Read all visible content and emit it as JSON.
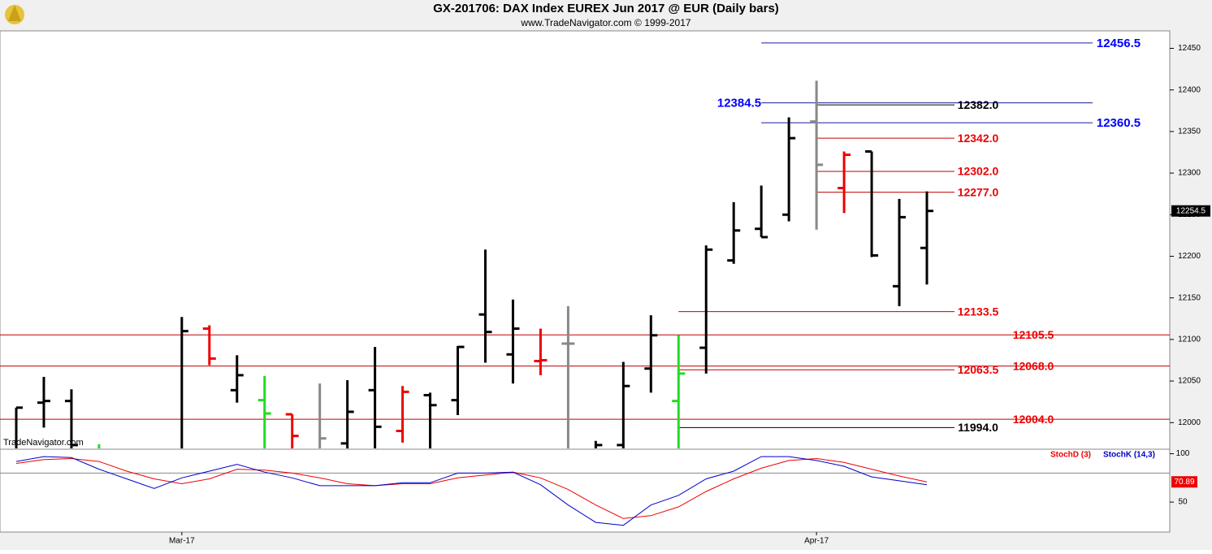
{
  "title": "GX-201706:  DAX Index EUREX Jun 2017 @ EUR  (Daily bars)",
  "subtitle": "www.TradeNavigator.com © 1999-2017",
  "watermark": "TradeNavigator.com",
  "chart_data": [
    {
      "type": "ohlc",
      "ylim": [
        11969,
        12471
      ],
      "yticks": [
        12000,
        12050,
        12100,
        12150,
        12200,
        12250,
        12300,
        12350,
        12400,
        12450
      ],
      "xticks": [
        {
          "value": 6,
          "label": "Mar-17"
        },
        {
          "value": 29,
          "label": "Apr-17"
        }
      ],
      "bars": [
        {
          "open": null,
          "high": 12018,
          "low": null,
          "close": 12018,
          "color": "#000000"
        },
        {
          "open": 12024,
          "high": 12055,
          "low": 11994,
          "close": 12026,
          "color": "#000000"
        },
        {
          "open": 12026,
          "high": 12040,
          "low": null,
          "close": 11973,
          "color": "#000000"
        },
        {
          "open": null,
          "high": 11974,
          "low": null,
          "close": null,
          "color": "#22dd22"
        },
        null,
        null,
        {
          "open": null,
          "high": 12127,
          "low": null,
          "close": 12110,
          "color": "#000000"
        },
        {
          "open": 12113,
          "high": 12117,
          "low": 12069,
          "close": 12077,
          "color": "#ee0000"
        },
        {
          "open": 12039,
          "high": 12081,
          "low": 12024,
          "close": 12057,
          "color": "#000000"
        },
        {
          "open": 12027,
          "high": 12056,
          "low": null,
          "close": 12011,
          "color": "#22dd22"
        },
        {
          "open": 12010,
          "high": 12010,
          "low": null,
          "close": 11984,
          "color": "#ee0000"
        },
        {
          "open": null,
          "high": 12047,
          "low": null,
          "close": 11981,
          "color": "#888888"
        },
        {
          "open": 11975,
          "high": 12051,
          "low": null,
          "close": 12013,
          "color": "#000000"
        },
        {
          "open": 12039,
          "high": 12091,
          "low": null,
          "close": 11995,
          "color": "#000000"
        },
        {
          "open": 11990,
          "high": 12044,
          "low": 11976,
          "close": 12037,
          "color": "#ee0000"
        },
        {
          "open": 12033,
          "high": 12036,
          "low": null,
          "close": 12021,
          "color": "#000000"
        },
        {
          "open": 12027,
          "high": 12092,
          "low": 12009,
          "close": 12091,
          "color": "#000000"
        },
        {
          "open": 12130,
          "high": 12208,
          "low": 12072,
          "close": 12109,
          "color": "#000000"
        },
        {
          "open": 12082,
          "high": 12148,
          "low": 12047,
          "close": 12113,
          "color": "#000000"
        },
        {
          "open": 12074,
          "high": 12113,
          "low": 12057,
          "close": 12075,
          "color": "#ee0000"
        },
        {
          "open": 12095,
          "high": 12140,
          "low": null,
          "close": 12095,
          "color": "#888888"
        },
        {
          "open": null,
          "high": 11978,
          "low": null,
          "close": 11973,
          "color": "#000000"
        },
        {
          "open": 11973,
          "high": 12073,
          "low": null,
          "close": 12044,
          "color": "#000000"
        },
        {
          "open": 12065,
          "high": 12129,
          "low": 12036,
          "close": 12105,
          "color": "#000000"
        },
        {
          "open": 12026,
          "high": 12105,
          "low": null,
          "close": 12059,
          "color": "#22dd22"
        },
        {
          "open": 12090,
          "high": 12213,
          "low": 12059,
          "close": 12208,
          "color": "#000000"
        },
        {
          "open": 12195,
          "high": 12265,
          "low": 12191,
          "close": 12231,
          "color": "#000000"
        },
        {
          "open": 12233,
          "high": 12285,
          "low": 12223,
          "close": 12223,
          "color": "#000000"
        },
        {
          "open": 12250,
          "high": 12367,
          "low": 12242,
          "close": 12342,
          "color": "#000000"
        },
        {
          "open": 12362,
          "high": 12411,
          "low": 12232,
          "close": 12310,
          "color": "#888888"
        },
        {
          "open": 12282,
          "high": 12326,
          "low": 12252,
          "close": 12322,
          "color": "#ee0000"
        },
        {
          "open": 12326,
          "high": 12326,
          "low": 12199,
          "close": 12201,
          "color": "#000000"
        },
        {
          "open": 12164,
          "high": 12269,
          "low": 12140,
          "close": 12247,
          "color": "#000000"
        },
        {
          "open": 12210,
          "high": 12278,
          "low": 12166,
          "close": 12254.5,
          "color": "#000000"
        }
      ],
      "levels": [
        {
          "value": 12456.5,
          "label": "12456.5",
          "color": "#0000ff",
          "from": 27
        },
        {
          "value": 12384.5,
          "label": "12384.5",
          "color": "#0000ff",
          "from": 27,
          "label_side": "left"
        },
        {
          "value": 12382,
          "label": "12382.0",
          "color": "#000000",
          "from": 29
        },
        {
          "value": 12360.5,
          "label": "12360.5",
          "color": "#0000ff",
          "from": 27
        },
        {
          "value": 12342,
          "label": "12342.0",
          "color": "#ee0000",
          "from": 29
        },
        {
          "value": 12302,
          "label": "12302.0",
          "color": "#ee0000",
          "from": 29
        },
        {
          "value": 12277,
          "label": "12277.0",
          "color": "#ee0000",
          "from": 29
        },
        {
          "value": 12133.5,
          "label": "12133.5",
          "color": "#ee0000",
          "from": 24
        },
        {
          "value": 12105.5,
          "label": "12105.5",
          "color": "#ee0000",
          "from": null
        },
        {
          "value": 12068,
          "label": "12068.0",
          "color": "#ee0000",
          "from": null
        },
        {
          "value": 12063.5,
          "label": "12063.5",
          "color": "#ee0000",
          "from": 24
        },
        {
          "value": 12004,
          "label": "12004.0",
          "color": "#ee0000",
          "from": null
        },
        {
          "value": 11994,
          "label": "11994.0",
          "color": "#000000",
          "from": 24
        }
      ]
    },
    {
      "type": "line",
      "ylim": [
        19,
        103
      ],
      "yticks": [
        50,
        100
      ],
      "reference": 80,
      "series": [
        {
          "name": "StochD (3)",
          "color": "#ee0000",
          "values": [
            90,
            94,
            95,
            92,
            82,
            74,
            69,
            74,
            84,
            83,
            80,
            75,
            69,
            67,
            69,
            69,
            75,
            78,
            81,
            75,
            63,
            47,
            33,
            36,
            45,
            61,
            74,
            85,
            93,
            95,
            91,
            84,
            77,
            70.89
          ]
        },
        {
          "name": "StochK (14,3)",
          "color": "#0000cc",
          "values": [
            92,
            97,
            96,
            84,
            74,
            64,
            75,
            82,
            89,
            81,
            75,
            67,
            67,
            67,
            70,
            70,
            80,
            80,
            81,
            68,
            47,
            29,
            26,
            47,
            57,
            74,
            82,
            97,
            97,
            93,
            87,
            76,
            72,
            68
          ]
        }
      ]
    }
  ]
}
